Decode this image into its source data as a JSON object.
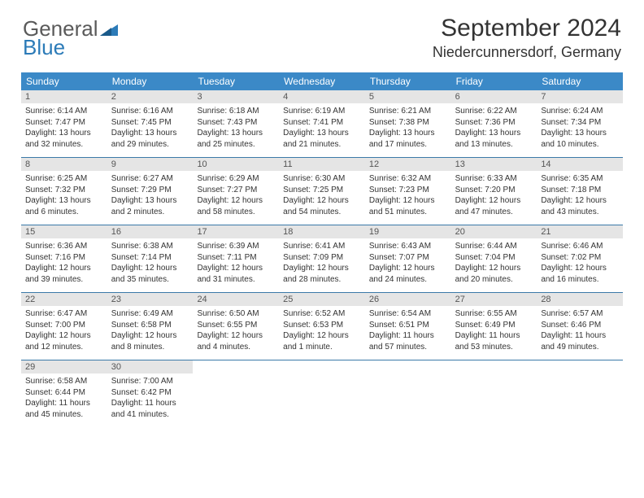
{
  "logo": {
    "text1": "General",
    "text2": "Blue"
  },
  "title": "September 2024",
  "location": "Niedercunnersdorf, Germany",
  "colors": {
    "header_bg": "#3b89c7",
    "header_text": "#ffffff",
    "daynum_bg": "#e5e5e5",
    "border": "#3b7aa8",
    "logo_gray": "#5a5a5a",
    "logo_blue": "#2c7bb8"
  },
  "dayHeaders": [
    "Sunday",
    "Monday",
    "Tuesday",
    "Wednesday",
    "Thursday",
    "Friday",
    "Saturday"
  ],
  "weeks": [
    [
      {
        "n": "1",
        "sr": "6:14 AM",
        "ss": "7:47 PM",
        "dl": "13 hours and 32 minutes."
      },
      {
        "n": "2",
        "sr": "6:16 AM",
        "ss": "7:45 PM",
        "dl": "13 hours and 29 minutes."
      },
      {
        "n": "3",
        "sr": "6:18 AM",
        "ss": "7:43 PM",
        "dl": "13 hours and 25 minutes."
      },
      {
        "n": "4",
        "sr": "6:19 AM",
        "ss": "7:41 PM",
        "dl": "13 hours and 21 minutes."
      },
      {
        "n": "5",
        "sr": "6:21 AM",
        "ss": "7:38 PM",
        "dl": "13 hours and 17 minutes."
      },
      {
        "n": "6",
        "sr": "6:22 AM",
        "ss": "7:36 PM",
        "dl": "13 hours and 13 minutes."
      },
      {
        "n": "7",
        "sr": "6:24 AM",
        "ss": "7:34 PM",
        "dl": "13 hours and 10 minutes."
      }
    ],
    [
      {
        "n": "8",
        "sr": "6:25 AM",
        "ss": "7:32 PM",
        "dl": "13 hours and 6 minutes."
      },
      {
        "n": "9",
        "sr": "6:27 AM",
        "ss": "7:29 PM",
        "dl": "13 hours and 2 minutes."
      },
      {
        "n": "10",
        "sr": "6:29 AM",
        "ss": "7:27 PM",
        "dl": "12 hours and 58 minutes."
      },
      {
        "n": "11",
        "sr": "6:30 AM",
        "ss": "7:25 PM",
        "dl": "12 hours and 54 minutes."
      },
      {
        "n": "12",
        "sr": "6:32 AM",
        "ss": "7:23 PM",
        "dl": "12 hours and 51 minutes."
      },
      {
        "n": "13",
        "sr": "6:33 AM",
        "ss": "7:20 PM",
        "dl": "12 hours and 47 minutes."
      },
      {
        "n": "14",
        "sr": "6:35 AM",
        "ss": "7:18 PM",
        "dl": "12 hours and 43 minutes."
      }
    ],
    [
      {
        "n": "15",
        "sr": "6:36 AM",
        "ss": "7:16 PM",
        "dl": "12 hours and 39 minutes."
      },
      {
        "n": "16",
        "sr": "6:38 AM",
        "ss": "7:14 PM",
        "dl": "12 hours and 35 minutes."
      },
      {
        "n": "17",
        "sr": "6:39 AM",
        "ss": "7:11 PM",
        "dl": "12 hours and 31 minutes."
      },
      {
        "n": "18",
        "sr": "6:41 AM",
        "ss": "7:09 PM",
        "dl": "12 hours and 28 minutes."
      },
      {
        "n": "19",
        "sr": "6:43 AM",
        "ss": "7:07 PM",
        "dl": "12 hours and 24 minutes."
      },
      {
        "n": "20",
        "sr": "6:44 AM",
        "ss": "7:04 PM",
        "dl": "12 hours and 20 minutes."
      },
      {
        "n": "21",
        "sr": "6:46 AM",
        "ss": "7:02 PM",
        "dl": "12 hours and 16 minutes."
      }
    ],
    [
      {
        "n": "22",
        "sr": "6:47 AM",
        "ss": "7:00 PM",
        "dl": "12 hours and 12 minutes."
      },
      {
        "n": "23",
        "sr": "6:49 AM",
        "ss": "6:58 PM",
        "dl": "12 hours and 8 minutes."
      },
      {
        "n": "24",
        "sr": "6:50 AM",
        "ss": "6:55 PM",
        "dl": "12 hours and 4 minutes."
      },
      {
        "n": "25",
        "sr": "6:52 AM",
        "ss": "6:53 PM",
        "dl": "12 hours and 1 minute."
      },
      {
        "n": "26",
        "sr": "6:54 AM",
        "ss": "6:51 PM",
        "dl": "11 hours and 57 minutes."
      },
      {
        "n": "27",
        "sr": "6:55 AM",
        "ss": "6:49 PM",
        "dl": "11 hours and 53 minutes."
      },
      {
        "n": "28",
        "sr": "6:57 AM",
        "ss": "6:46 PM",
        "dl": "11 hours and 49 minutes."
      }
    ],
    [
      {
        "n": "29",
        "sr": "6:58 AM",
        "ss": "6:44 PM",
        "dl": "11 hours and 45 minutes."
      },
      {
        "n": "30",
        "sr": "7:00 AM",
        "ss": "6:42 PM",
        "dl": "11 hours and 41 minutes."
      },
      {
        "empty": true
      },
      {
        "empty": true
      },
      {
        "empty": true
      },
      {
        "empty": true
      },
      {
        "empty": true
      }
    ]
  ],
  "labels": {
    "sunrise": "Sunrise: ",
    "sunset": "Sunset: ",
    "daylight": "Daylight: "
  }
}
